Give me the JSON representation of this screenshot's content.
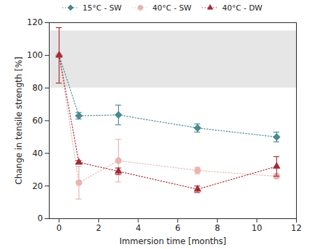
{
  "chart_data": {
    "type": "line",
    "x_label": "Immersion time [months]",
    "y_label": "Change in tensile strength [%]",
    "xlim": [
      -0.5,
      12
    ],
    "xticks": [
      0,
      2,
      4,
      6,
      8,
      10,
      12
    ],
    "ylim": [
      0,
      120
    ],
    "yticks": [
      0,
      20,
      40,
      60,
      80,
      100,
      120
    ],
    "reference_band": [
      80,
      115
    ],
    "legend": "top",
    "series": [
      {
        "name": "15°C - SW",
        "color": "#4a8a8c",
        "marker": "diamond",
        "line_style": "dotted",
        "x": [
          0,
          1,
          3,
          7,
          11
        ],
        "values": [
          100,
          63,
          63.5,
          55.5,
          50
        ],
        "errors": [
          0,
          2,
          6,
          2.5,
          3
        ]
      },
      {
        "name": "40°C - SW",
        "color": "#e8b4b0",
        "marker": "circle",
        "line_style": "dotted",
        "x": [
          0,
          1,
          3,
          7,
          11
        ],
        "values": [
          100,
          22,
          35.5,
          29.5,
          26
        ],
        "errors": [
          0,
          10,
          13,
          2,
          1.5
        ]
      },
      {
        "name": "40°C - DW",
        "color": "#a52a35",
        "marker": "triangle",
        "line_style": "dotted",
        "x": [
          0,
          1,
          3,
          7,
          11
        ],
        "values": [
          100,
          34.5,
          29,
          18,
          32
        ],
        "errors": [
          17,
          1,
          2,
          2,
          6
        ]
      }
    ]
  }
}
